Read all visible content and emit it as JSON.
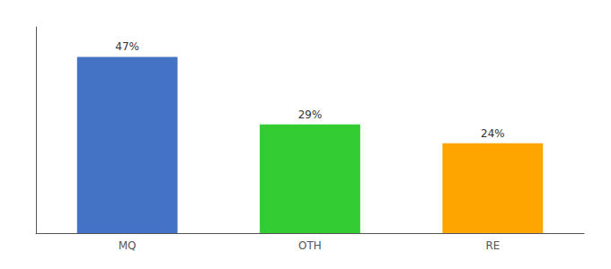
{
  "chart_data": {
    "type": "bar",
    "categories": [
      "MQ",
      "OTH",
      "RE"
    ],
    "values": [
      47,
      29,
      24
    ],
    "value_labels": [
      "47%",
      "29%",
      "24%"
    ],
    "colors": [
      "#4472C4",
      "#33CC33",
      "#FFA500"
    ],
    "ylim": [
      0,
      55
    ],
    "grid": false,
    "data_labels": true,
    "tick_labels": "x"
  }
}
